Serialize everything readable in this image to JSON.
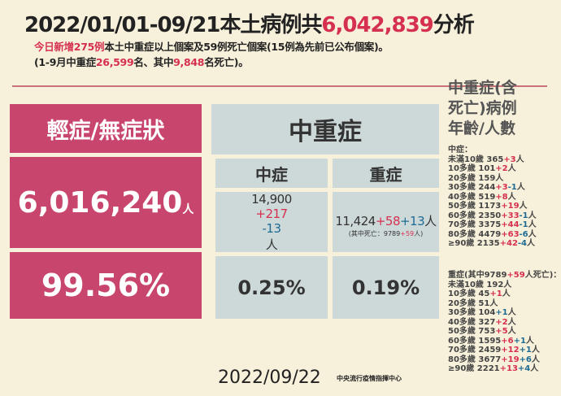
{
  "colors": {
    "red": "#d6304f",
    "blue": "#1f6b93",
    "pink": "#c8466d",
    "gray": "#cdd8d9",
    "background": "#f7f0da"
  },
  "title": [
    {
      "t": "2022/01/01-09/21本土病例共",
      "c": "k"
    },
    {
      "t": "6,042,839",
      "c": "r"
    },
    {
      "t": "分析",
      "c": "k"
    }
  ],
  "subtitle1": [
    {
      "t": "今日新增275例",
      "c": "r"
    },
    {
      "t": "本土中重症以上個案及59例死亡個案(15例為先前已公布個案)。",
      "c": "k"
    }
  ],
  "subtitle2": [
    {
      "t": "(1-9月中重症",
      "c": "k"
    },
    {
      "t": "26,599",
      "c": "r"
    },
    {
      "t": "名、其中",
      "c": "k"
    },
    {
      "t": "9,848",
      "c": "r"
    },
    {
      "t": "名死亡)。",
      "c": "k"
    }
  ],
  "mild": {
    "header": "輕症/無症狀",
    "value": "6,016,240",
    "unit": "人",
    "percent": "99.56%"
  },
  "severe_group": {
    "header": "中重症",
    "moderate": {
      "label": "中症",
      "value": [
        {
          "t": "14,900",
          "c": "k"
        },
        {
          "t": "+217",
          "c": "r"
        },
        {
          "t": "-13",
          "c": "b"
        },
        {
          "t": "人",
          "c": "k"
        }
      ],
      "percent": "0.25%"
    },
    "severe": {
      "label": "重症",
      "value": [
        {
          "t": "11,424",
          "c": "k"
        },
        {
          "t": "+58",
          "c": "r"
        },
        {
          "t": "+13",
          "c": "b"
        },
        {
          "t": "人",
          "c": "k"
        }
      ],
      "note": [
        {
          "t": "(其中死亡：9789",
          "c": "k"
        },
        {
          "t": "+59",
          "c": "r"
        },
        {
          "t": "人)",
          "c": "k"
        }
      ],
      "percent": "0.19%"
    }
  },
  "age_panel": {
    "title_lines": [
      "中重症(含",
      "死亡)病例",
      "年齡/人數"
    ],
    "moderate_header": "中症：",
    "moderate_rows": [
      [
        {
          "t": "未滿10歲  365",
          "c": "k"
        },
        {
          "t": "+3",
          "c": "r"
        },
        {
          "t": "人",
          "c": "k"
        }
      ],
      [
        {
          "t": "10多歲  101",
          "c": "k"
        },
        {
          "t": "+2",
          "c": "r"
        },
        {
          "t": "人",
          "c": "k"
        }
      ],
      [
        {
          "t": "20多歲  159人",
          "c": "k"
        }
      ],
      [
        {
          "t": "30多歲  244",
          "c": "k"
        },
        {
          "t": "+3",
          "c": "r"
        },
        {
          "t": "-1",
          "c": "b"
        },
        {
          "t": "人",
          "c": "k"
        }
      ],
      [
        {
          "t": "40多歲  519",
          "c": "k"
        },
        {
          "t": "+8",
          "c": "r"
        },
        {
          "t": "人",
          "c": "k"
        }
      ],
      [
        {
          "t": "50多歲  1173",
          "c": "k"
        },
        {
          "t": "+19",
          "c": "r"
        },
        {
          "t": "人",
          "c": "k"
        }
      ],
      [
        {
          "t": "60多歲  2350",
          "c": "k"
        },
        {
          "t": "+33",
          "c": "r"
        },
        {
          "t": "-1",
          "c": "b"
        },
        {
          "t": "人",
          "c": "k"
        }
      ],
      [
        {
          "t": "70多歲  3375",
          "c": "k"
        },
        {
          "t": "+44",
          "c": "r"
        },
        {
          "t": "-1",
          "c": "b"
        },
        {
          "t": "人",
          "c": "k"
        }
      ],
      [
        {
          "t": "80多歲  4479",
          "c": "k"
        },
        {
          "t": "+63",
          "c": "r"
        },
        {
          "t": "-6",
          "c": "b"
        },
        {
          "t": "人",
          "c": "k"
        }
      ],
      [
        {
          "t": "≥90歲  2135",
          "c": "k"
        },
        {
          "t": "+42",
          "c": "r"
        },
        {
          "t": "-4",
          "c": "b"
        },
        {
          "t": "人",
          "c": "k"
        }
      ]
    ],
    "severe_header": [
      {
        "t": "重症(其中9789",
        "c": "k"
      },
      {
        "t": "+59",
        "c": "r"
      },
      {
        "t": "人死亡)：",
        "c": "k"
      }
    ],
    "severe_rows": [
      [
        {
          "t": "未滿10歲 192人",
          "c": "k"
        }
      ],
      [
        {
          "t": "10多歲  45",
          "c": "k"
        },
        {
          "t": "+1",
          "c": "r"
        },
        {
          "t": "人",
          "c": "k"
        }
      ],
      [
        {
          "t": "20多歲  51人",
          "c": "k"
        }
      ],
      [
        {
          "t": "30多歲  104",
          "c": "k"
        },
        {
          "t": "+1",
          "c": "b"
        },
        {
          "t": "人",
          "c": "k"
        }
      ],
      [
        {
          "t": "40多歲  327",
          "c": "k"
        },
        {
          "t": "+2",
          "c": "r"
        },
        {
          "t": "人",
          "c": "k"
        }
      ],
      [
        {
          "t": "50多歲  753",
          "c": "k"
        },
        {
          "t": "+5",
          "c": "r"
        },
        {
          "t": "人",
          "c": "k"
        }
      ],
      [
        {
          "t": "60多歲  1595",
          "c": "k"
        },
        {
          "t": "+6",
          "c": "r"
        },
        {
          "t": "+1",
          "c": "b"
        },
        {
          "t": "人",
          "c": "k"
        }
      ],
      [
        {
          "t": "70多歲  2459",
          "c": "k"
        },
        {
          "t": "+12",
          "c": "r"
        },
        {
          "t": "+1",
          "c": "b"
        },
        {
          "t": "人",
          "c": "k"
        }
      ],
      [
        {
          "t": "80多歲  3677",
          "c": "k"
        },
        {
          "t": "+19",
          "c": "r"
        },
        {
          "t": "+6",
          "c": "b"
        },
        {
          "t": "人",
          "c": "k"
        }
      ],
      [
        {
          "t": "≥90歲  2221",
          "c": "k"
        },
        {
          "t": "+13",
          "c": "r"
        },
        {
          "t": "+4",
          "c": "b"
        },
        {
          "t": "人",
          "c": "k"
        }
      ]
    ]
  },
  "footer": {
    "date": "2022/09/22",
    "org": "中央流行疫情指揮中心"
  }
}
